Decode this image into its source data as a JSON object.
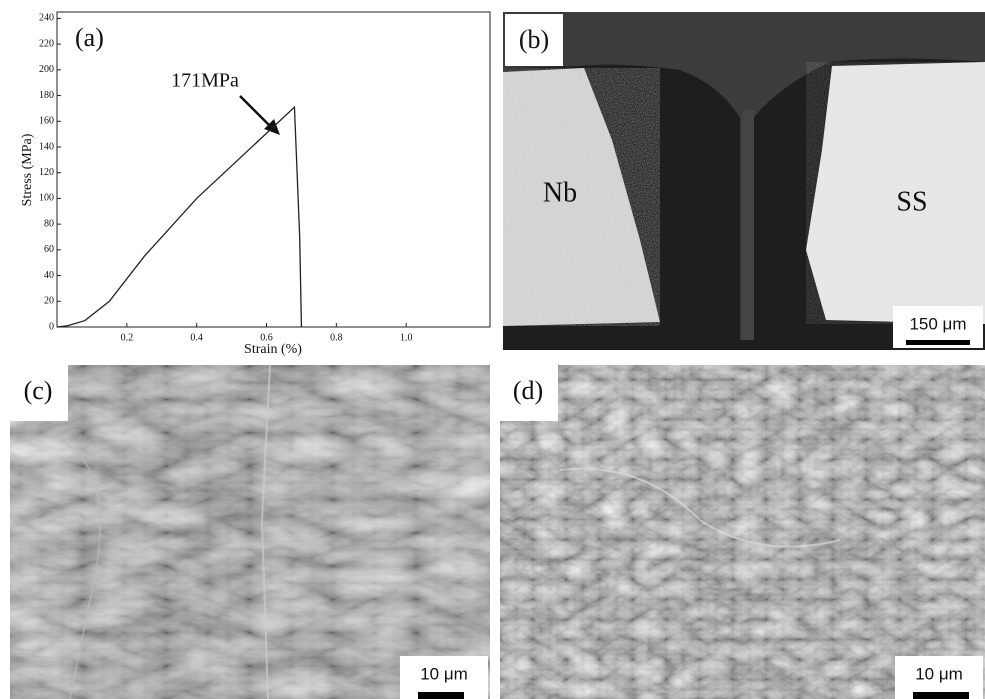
{
  "chart_data": {
    "type": "line",
    "panel_label": "(a)",
    "x_label": "Strain (%)",
    "y_label": "Stress (MPa)",
    "annotation": "171MPa",
    "x": [
      0,
      0.03,
      0.08,
      0.15,
      0.25,
      0.4,
      0.55,
      0.68,
      0.695,
      0.7
    ],
    "values": [
      0,
      1,
      5,
      20,
      55,
      100,
      138,
      171,
      70,
      0
    ],
    "color": "#222",
    "xlim": [
      0,
      1.24
    ],
    "xticks": [
      0.2,
      0.4,
      0.6,
      0.8,
      {
        "value": 1,
        "label": "1.0"
      }
    ],
    "ylim": [
      0,
      245
    ],
    "yticks": [
      0,
      20,
      40,
      60,
      80,
      100,
      120,
      140,
      160,
      180,
      200,
      220,
      240
    ]
  },
  "images": [
    {
      "label": "(b)",
      "texts": [
        "Nb",
        "SS"
      ],
      "scale_bar": "150 μm"
    },
    {
      "label": "(c)",
      "scale_bar": "10 μm"
    },
    {
      "label": "(d)",
      "scale_bar": "10 μm"
    }
  ]
}
